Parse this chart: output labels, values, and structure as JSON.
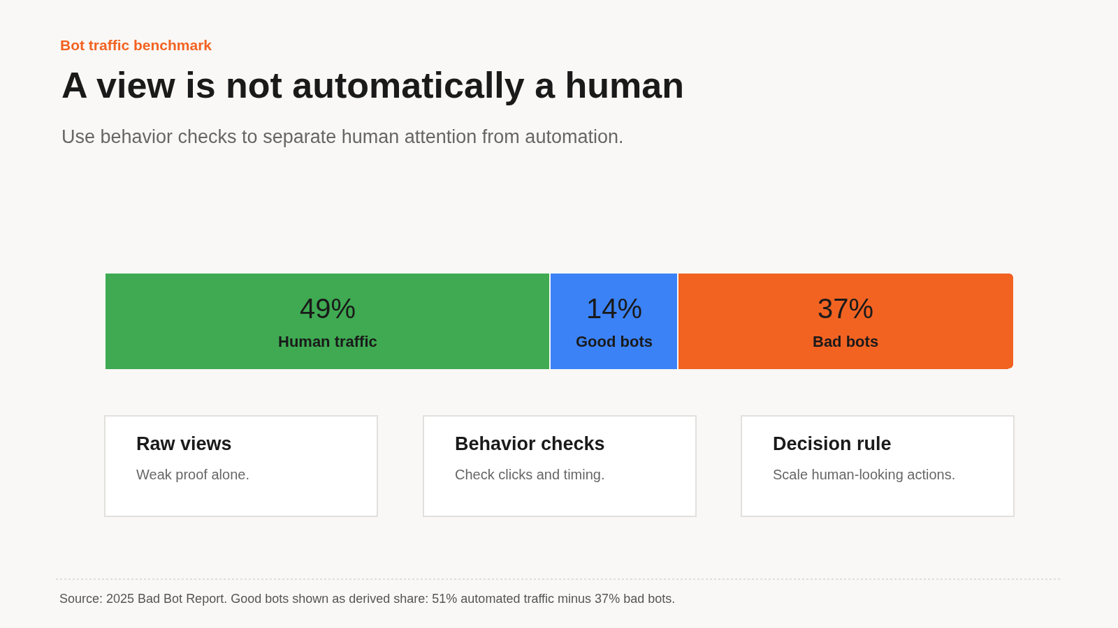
{
  "chart_data": {
    "type": "bar",
    "orientation": "horizontal",
    "stacked": true,
    "title": "A view is not automatically a human",
    "subtitle": "Use behavior checks to separate human attention from automation.",
    "categories": [
      null
    ],
    "series": [
      {
        "name": "Human traffic",
        "color": "#3faa52",
        "values": [
          49
        ],
        "value_labels": [
          "49%"
        ]
      },
      {
        "name": "Good bots",
        "color": "#3b82f6",
        "values": [
          14
        ],
        "value_labels": [
          "14%"
        ]
      },
      {
        "name": "Bad bots",
        "color": "#f26322",
        "values": [
          37
        ],
        "value_labels": [
          "37%"
        ]
      }
    ],
    "annotations": [
      "Bot traffic benchmark",
      "Raw views",
      "Weak proof alone.",
      "Behavior checks",
      "Check clicks and timing.",
      "Decision rule",
      "Scale human-looking actions.",
      "Source: 2025 Bad Bot Report. Good bots shown as derived share: 51% automated traffic minus 37% bad bots."
    ],
    "legend": false
  }
}
